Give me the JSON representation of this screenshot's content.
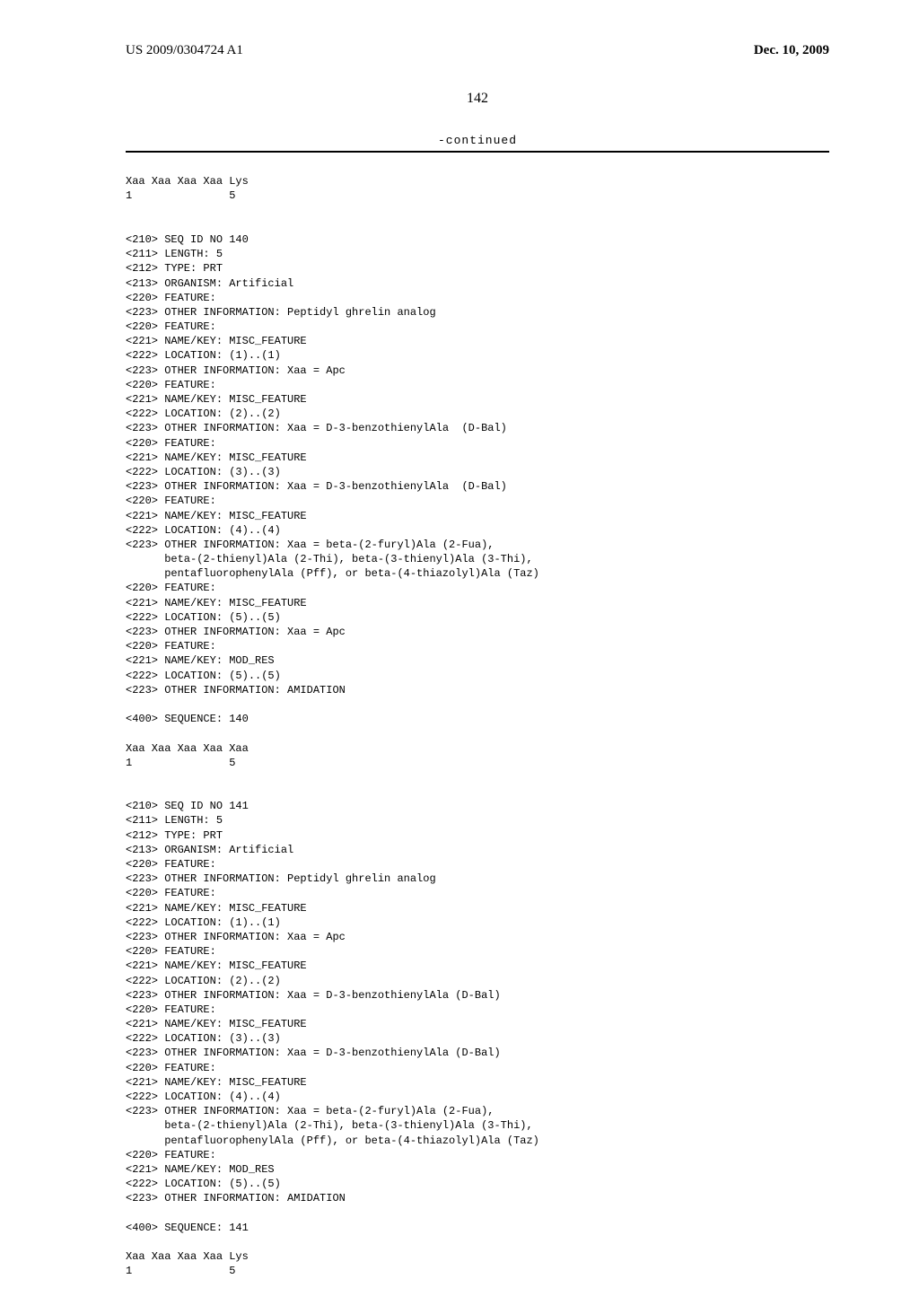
{
  "header": {
    "publication_number": "US 2009/0304724 A1",
    "publication_date": "Dec. 10, 2009"
  },
  "page_number": "142",
  "continued_label": "-continued",
  "prelude": {
    "sequence_line": "Xaa Xaa Xaa Xaa Lys",
    "index_line": "1               5"
  },
  "block140": {
    "l1": "<210> SEQ ID NO 140",
    "l2": "<211> LENGTH: 5",
    "l3": "<212> TYPE: PRT",
    "l4": "<213> ORGANISM: Artificial",
    "l5": "<220> FEATURE:",
    "l6": "<223> OTHER INFORMATION: Peptidyl ghrelin analog",
    "l7": "<220> FEATURE:",
    "l8": "<221> NAME/KEY: MISC_FEATURE",
    "l9": "<222> LOCATION: (1)..(1)",
    "l10": "<223> OTHER INFORMATION: Xaa = Apc",
    "l11": "<220> FEATURE:",
    "l12": "<221> NAME/KEY: MISC_FEATURE",
    "l13": "<222> LOCATION: (2)..(2)",
    "l14": "<223> OTHER INFORMATION: Xaa = D-3-benzothienylAla  (D-Bal)",
    "l15": "<220> FEATURE:",
    "l16": "<221> NAME/KEY: MISC_FEATURE",
    "l17": "<222> LOCATION: (3)..(3)",
    "l18": "<223> OTHER INFORMATION: Xaa = D-3-benzothienylAla  (D-Bal)",
    "l19": "<220> FEATURE:",
    "l20": "<221> NAME/KEY: MISC_FEATURE",
    "l21": "<222> LOCATION: (4)..(4)",
    "l22": "<223> OTHER INFORMATION: Xaa = beta-(2-furyl)Ala (2-Fua),",
    "l23": "      beta-(2-thienyl)Ala (2-Thi), beta-(3-thienyl)Ala (3-Thi),",
    "l24": "      pentafluorophenylAla (Pff), or beta-(4-thiazolyl)Ala (Taz)",
    "l25": "<220> FEATURE:",
    "l26": "<221> NAME/KEY: MISC_FEATURE",
    "l27": "<222> LOCATION: (5)..(5)",
    "l28": "<223> OTHER INFORMATION: Xaa = Apc",
    "l29": "<220> FEATURE:",
    "l30": "<221> NAME/KEY: MOD_RES",
    "l31": "<222> LOCATION: (5)..(5)",
    "l32": "<223> OTHER INFORMATION: AMIDATION",
    "seq_header": "<400> SEQUENCE: 140",
    "seq_line": "Xaa Xaa Xaa Xaa Xaa",
    "idx_line": "1               5"
  },
  "block141": {
    "l1": "<210> SEQ ID NO 141",
    "l2": "<211> LENGTH: 5",
    "l3": "<212> TYPE: PRT",
    "l4": "<213> ORGANISM: Artificial",
    "l5": "<220> FEATURE:",
    "l6": "<223> OTHER INFORMATION: Peptidyl ghrelin analog",
    "l7": "<220> FEATURE:",
    "l8": "<221> NAME/KEY: MISC_FEATURE",
    "l9": "<222> LOCATION: (1)..(1)",
    "l10": "<223> OTHER INFORMATION: Xaa = Apc",
    "l11": "<220> FEATURE:",
    "l12": "<221> NAME/KEY: MISC_FEATURE",
    "l13": "<222> LOCATION: (2)..(2)",
    "l14": "<223> OTHER INFORMATION: Xaa = D-3-benzothienylAla (D-Bal)",
    "l15": "<220> FEATURE:",
    "l16": "<221> NAME/KEY: MISC_FEATURE",
    "l17": "<222> LOCATION: (3)..(3)",
    "l18": "<223> OTHER INFORMATION: Xaa = D-3-benzothienylAla (D-Bal)",
    "l19": "<220> FEATURE:",
    "l20": "<221> NAME/KEY: MISC_FEATURE",
    "l21": "<222> LOCATION: (4)..(4)",
    "l22": "<223> OTHER INFORMATION: Xaa = beta-(2-furyl)Ala (2-Fua),",
    "l23": "      beta-(2-thienyl)Ala (2-Thi), beta-(3-thienyl)Ala (3-Thi),",
    "l24": "      pentafluorophenylAla (Pff), or beta-(4-thiazolyl)Ala (Taz)",
    "l25": "<220> FEATURE:",
    "l26": "<221> NAME/KEY: MOD_RES",
    "l27": "<222> LOCATION: (5)..(5)",
    "l28": "<223> OTHER INFORMATION: AMIDATION",
    "seq_header": "<400> SEQUENCE: 141",
    "seq_line": "Xaa Xaa Xaa Xaa Lys",
    "idx_line": "1               5"
  }
}
